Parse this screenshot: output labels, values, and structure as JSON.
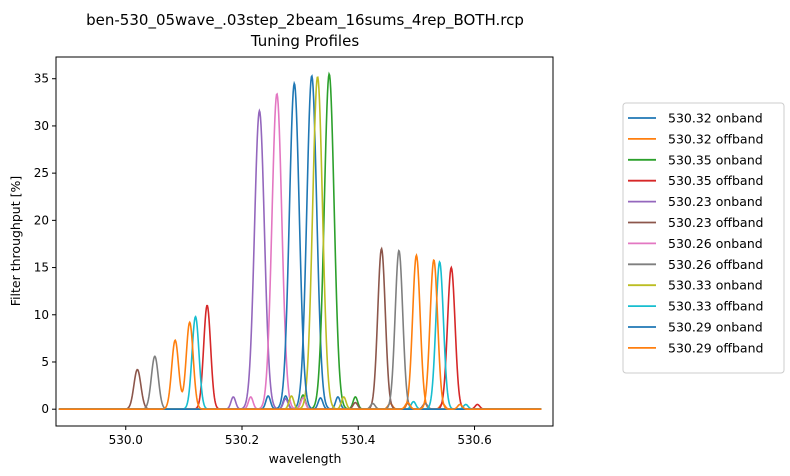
{
  "chart_data": {
    "type": "line",
    "title": "ben-530_05wave_.03step_2beam_16sums_4rep_BOTH.rcp",
    "subtitle": "Tuning Profiles",
    "xlabel": "wavelength",
    "ylabel": "Filter throughput [%]",
    "xlim": [
      529.88,
      530.735
    ],
    "ylim": [
      -1.78,
      37.3
    ],
    "x_ticks": [
      530.0,
      530.2,
      530.4,
      530.6
    ],
    "x_tick_labels": [
      "530.0",
      "530.2",
      "530.4",
      "530.6"
    ],
    "y_ticks": [
      0,
      5,
      10,
      15,
      20,
      25,
      30,
      35
    ],
    "y_tick_labels": [
      "0",
      "5",
      "10",
      "15",
      "20",
      "25",
      "30",
      "35"
    ],
    "x_range": [
      529.885,
      530.715
    ],
    "grid": false,
    "legend_position": "outside-right",
    "series": [
      {
        "name": "530.32 onband",
        "color": "#1f77b4",
        "main": [
          530.32,
          35.3,
          0.0085
        ],
        "secondary": [
          [
            530.275,
            1.4,
            0.004
          ],
          [
            530.365,
            1.3,
            0.004
          ]
        ]
      },
      {
        "name": "530.32 offband",
        "color": "#ff7f0e",
        "main": [
          530.5,
          16.3,
          0.0065
        ],
        "secondary": [
          [
            530.455,
            0.6,
            0.004
          ],
          [
            530.545,
            0.6,
            0.004
          ]
        ]
      },
      {
        "name": "530.35 onband",
        "color": "#2ca02c",
        "main": [
          530.35,
          35.5,
          0.0085
        ],
        "secondary": [
          [
            530.305,
            1.5,
            0.004
          ],
          [
            530.395,
            1.3,
            0.004
          ]
        ]
      },
      {
        "name": "530.35 offband",
        "color": "#d62728",
        "main": [
          530.56,
          15.0,
          0.0065
        ],
        "secondary": [
          [
            530.14,
            11.0,
            0.006
          ],
          [
            530.515,
            0.6,
            0.004
          ],
          [
            530.605,
            0.5,
            0.004
          ]
        ]
      },
      {
        "name": "530.23 onband",
        "color": "#9467bd",
        "main": [
          530.23,
          31.6,
          0.0085
        ],
        "secondary": [
          [
            530.185,
            1.3,
            0.004
          ],
          [
            530.275,
            1.1,
            0.004
          ]
        ]
      },
      {
        "name": "530.23 offband",
        "color": "#8c564b",
        "main": [
          530.44,
          17.0,
          0.0065
        ],
        "secondary": [
          [
            530.02,
            4.2,
            0.006
          ],
          [
            530.395,
            0.7,
            0.004
          ],
          [
            530.485,
            0.6,
            0.004
          ]
        ]
      },
      {
        "name": "530.26 onband",
        "color": "#e377c2",
        "main": [
          530.26,
          33.4,
          0.0085
        ],
        "secondary": [
          [
            530.215,
            1.3,
            0.004
          ],
          [
            530.305,
            1.2,
            0.004
          ]
        ]
      },
      {
        "name": "530.26 offband",
        "color": "#7f7f7f",
        "main": [
          530.47,
          16.8,
          0.0065
        ],
        "secondary": [
          [
            530.05,
            5.6,
            0.006
          ],
          [
            530.425,
            0.6,
            0.004
          ],
          [
            530.515,
            0.6,
            0.004
          ]
        ]
      },
      {
        "name": "530.33 onband",
        "color": "#bcbd22",
        "main": [
          530.33,
          35.2,
          0.0085
        ],
        "secondary": [
          [
            530.285,
            1.4,
            0.004
          ],
          [
            530.375,
            1.3,
            0.004
          ]
        ]
      },
      {
        "name": "530.33 offband",
        "color": "#17becf",
        "main": [
          530.54,
          15.6,
          0.0065
        ],
        "secondary": [
          [
            530.12,
            9.8,
            0.006
          ],
          [
            530.495,
            0.8,
            0.004
          ],
          [
            530.585,
            0.5,
            0.004
          ]
        ]
      },
      {
        "name": "530.29 onband",
        "color": "#1f77b4",
        "main": [
          530.29,
          34.5,
          0.0085
        ],
        "secondary": [
          [
            530.245,
            1.4,
            0.004
          ],
          [
            530.335,
            1.2,
            0.004
          ]
        ]
      },
      {
        "name": "530.29 offband",
        "color": "#ff7f0e",
        "main": [
          530.53,
          15.8,
          0.0065
        ],
        "secondary": [
          [
            530.085,
            7.3,
            0.006
          ],
          [
            530.11,
            9.2,
            0.006
          ],
          [
            530.485,
            0.7,
            0.004
          ],
          [
            530.575,
            0.5,
            0.004
          ]
        ]
      }
    ]
  }
}
